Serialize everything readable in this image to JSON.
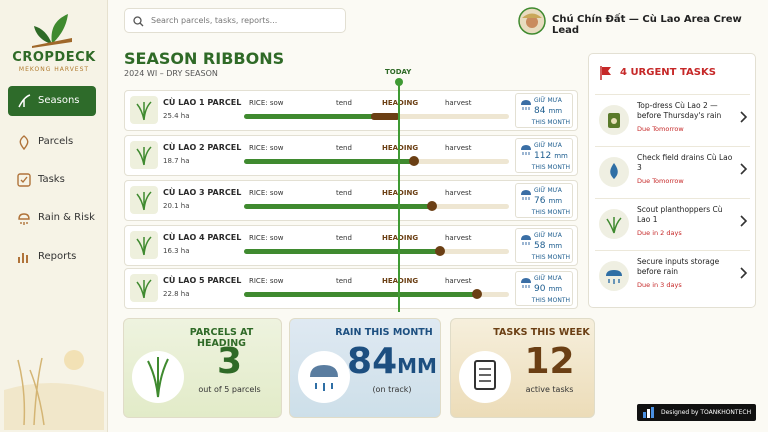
{
  "brand": {
    "name": "CROPDECK",
    "tagline": "MEKONG HARVEST"
  },
  "nav": [
    "Seasons",
    "Parcels",
    "Tasks",
    "Rain & Risk",
    "Reports"
  ],
  "search_placeholder": "Search parcels, tasks, reports...",
  "user": "Chú Chín Đất — Cù Lao Area Crew Lead",
  "season": {
    "title": "SEASON RIBBONS",
    "subtitle": "2024 WI – DRY SEASON",
    "today_label": "TODAY",
    "stage_labels": [
      "RICE: sow",
      "tend",
      "HEADING",
      "harvest"
    ],
    "rain_label": "GIỮ MƯA",
    "rain_period": "THIS MONTH",
    "parcels": [
      {
        "name": "CÙ LAO 1 PARCEL",
        "area": "25.4 ha",
        "rain": 84,
        "rain_unit": "mm"
      },
      {
        "name": "CÙ LAO 2 PARCEL",
        "area": "18.7 ha",
        "rain": 112,
        "rain_unit": "mm"
      },
      {
        "name": "CÙ LAO 3 PARCEL",
        "area": "20.1 ha",
        "rain": 76,
        "rain_unit": "mm"
      },
      {
        "name": "CÙ LAO 4 PARCEL",
        "area": "16.3 ha",
        "rain": 58,
        "rain_unit": "mm"
      },
      {
        "name": "CÙ LAO 5 PARCEL",
        "area": "22.8 ha",
        "rain": 90,
        "rain_unit": "mm"
      }
    ]
  },
  "tasks": {
    "title": "4 URGENT TASKS",
    "items": [
      {
        "title": "Top-dress Cù Lao 2 — before Thursday's rain",
        "due": "Due Tomorrow"
      },
      {
        "title": "Check field drains Cù Lao 3",
        "due": "Due Tomorrow"
      },
      {
        "title": "Scout planthoppers Cù Lao 1",
        "due": "Due in 2 days"
      },
      {
        "title": "Secure inputs storage before rain",
        "due": "Due in 3 days"
      }
    ]
  },
  "stats": [
    {
      "title": "PARCELS AT HEADING",
      "value": 3,
      "note": "out of 5 parcels"
    },
    {
      "title": "RAIN THIS MONTH",
      "value": 84,
      "unit": "MM",
      "note": "(on track)"
    },
    {
      "title": "TASKS THIS WEEK",
      "value": 12,
      "note": "active tasks"
    }
  ],
  "credit": "Designed by TOANKHONTECH"
}
